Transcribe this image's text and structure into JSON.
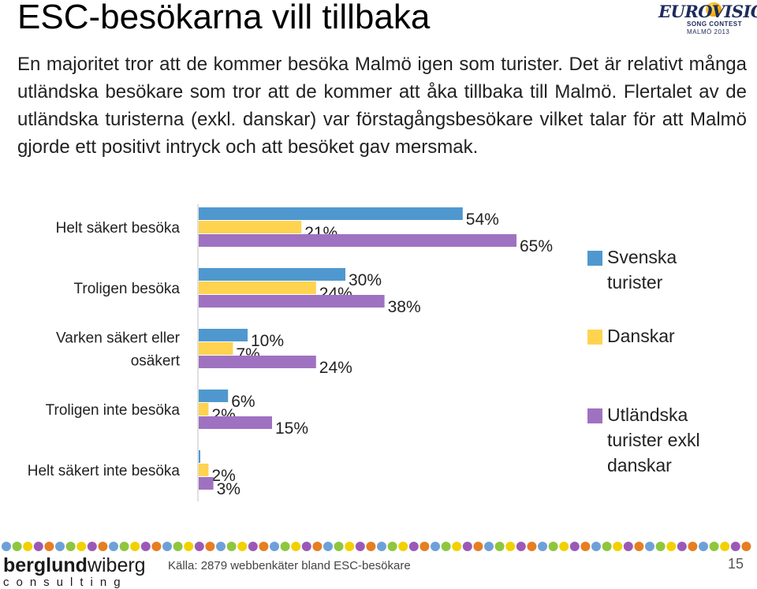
{
  "header": {
    "title": "ESC-besökarna vill tillbaka",
    "intro": "En majoritet tror att de kommer besöka Malmö igen som turister. Det är relativt många utländska besökare som tror att de kommer att åka tillbaka till Malmö. Flertalet av de utländska turisterna (exkl. danskar) var förstagångsbesökare vilket talar för att Malmö gjorde ett positivt intryck och att besöket gav mersmak."
  },
  "logo": {
    "word": "EUROVISION",
    "line1": "SONG CONTEST",
    "line2": "MALMÖ 2013"
  },
  "chart_data": {
    "type": "bar",
    "orientation": "horizontal",
    "categories": [
      "Helt säkert besöka",
      "Troligen besöka",
      "Varken säkert eller osäkert",
      "Troligen inte besöka",
      "Helt säkert inte besöka"
    ],
    "category_lines": [
      [
        "Helt säkert besöka"
      ],
      [
        "Troligen besöka"
      ],
      [
        "Varken säkert eller",
        "osäkert"
      ],
      [
        "Troligen inte besöka"
      ],
      [
        "Helt säkert inte besöka"
      ]
    ],
    "series": [
      {
        "name": "Svenska turister",
        "name_lines": [
          "Svenska",
          "turister"
        ],
        "color": "#4f98cf",
        "values": [
          54,
          30,
          10,
          6,
          0
        ],
        "labels": [
          "54%",
          "30%",
          "10%",
          "6%",
          ""
        ]
      },
      {
        "name": "Danskar",
        "name_lines": [
          "Danskar"
        ],
        "color": "#ffd34f",
        "values": [
          21,
          24,
          7,
          2,
          2
        ],
        "labels": [
          "21%",
          "24%",
          "7%",
          "2%",
          "2%"
        ]
      },
      {
        "name": "Utländska turister exkl danskar",
        "name_lines": [
          "Utländska",
          "turister exkl",
          "danskar"
        ],
        "color": "#9f72c1",
        "values": [
          65,
          38,
          24,
          15,
          3
        ],
        "labels": [
          "65%",
          "38%",
          "24%",
          "15%",
          "3%"
        ]
      }
    ],
    "xlim": [
      0,
      70
    ],
    "grid": false,
    "legend": "right",
    "axis_color": "#c0c0c0"
  },
  "footer": {
    "brand_bold": "berglund",
    "brand_regular": "wiberg",
    "brand_sub": "consulting",
    "source": "Källa: 2879 webbenkäter bland ESC-besökare",
    "page": "15",
    "dot_colors": [
      "#6ea0d8",
      "#8ec63f",
      "#f2d100",
      "#9b59b6",
      "#e67e22"
    ]
  }
}
